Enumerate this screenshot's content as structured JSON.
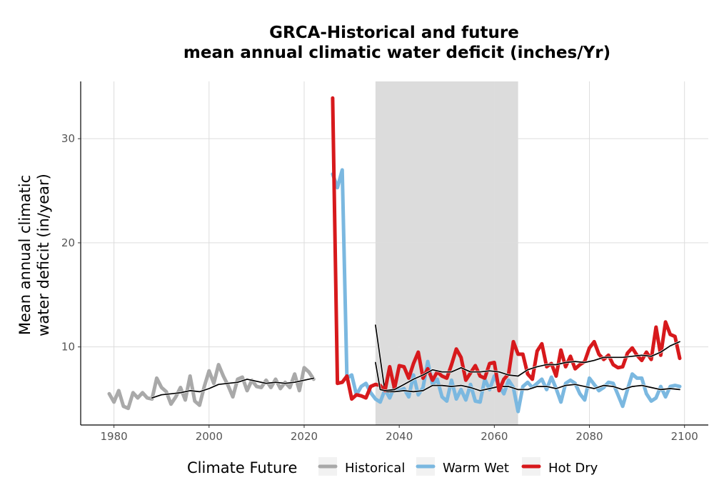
{
  "chart_data": {
    "type": "line",
    "title": [
      "GRCA-Historical and future",
      "mean annual climatic water deficit (inches/Yr)"
    ],
    "xlabel": "",
    "ylabel": [
      "Mean annual climatic",
      "water deficit (in/year)"
    ],
    "xlim": [
      1973,
      2105
    ],
    "ylim": [
      2.5,
      35.5
    ],
    "x_ticks": [
      1980,
      2000,
      2020,
      2040,
      2060,
      2080,
      2100
    ],
    "y_ticks": [
      10,
      20,
      30
    ],
    "grid": true,
    "shaded_period": [
      2035,
      2065
    ],
    "shaded_color": "#dcdcdc",
    "legend": {
      "title": "Climate Future",
      "position": "bottom",
      "entries": [
        {
          "label": "Historical",
          "color": "#a9a9a9"
        },
        {
          "label": "Warm Wet",
          "color": "#7bb8e0"
        },
        {
          "label": "Hot Dry",
          "color": "#d7191c"
        }
      ]
    },
    "series": [
      {
        "name": "Historical",
        "color": "#a9a9a9",
        "x": [
          1979,
          1980,
          1981,
          1982,
          1983,
          1984,
          1985,
          1986,
          1987,
          1988,
          1989,
          1990,
          1991,
          1992,
          1993,
          1994,
          1995,
          1996,
          1997,
          1998,
          1999,
          2000,
          2001,
          2002,
          2003,
          2004,
          2005,
          2006,
          2007,
          2008,
          2009,
          2010,
          2011,
          2012,
          2013,
          2014,
          2015,
          2016,
          2017,
          2018,
          2019,
          2020,
          2021,
          2022
        ],
        "y": [
          5.5,
          4.7,
          5.8,
          4.3,
          4.1,
          5.6,
          5.1,
          5.6,
          5.1,
          5.0,
          7.0,
          6.1,
          5.7,
          4.5,
          5.2,
          6.1,
          4.9,
          7.2,
          4.8,
          4.4,
          6.2,
          7.7,
          6.5,
          8.3,
          7.2,
          6.3,
          5.2,
          6.9,
          7.1,
          5.8,
          6.8,
          6.2,
          6.1,
          6.8,
          6.1,
          6.9,
          6.0,
          6.6,
          6.1,
          7.4,
          5.8,
          8.0,
          7.6,
          6.9
        ]
      },
      {
        "name": "Historical rolling mean",
        "color": "#000000",
        "x": [
          1988,
          1990,
          1992,
          1994,
          1996,
          1998,
          2000,
          2002,
          2004,
          2006,
          2008,
          2010,
          2012,
          2014,
          2016,
          2018,
          2020,
          2022
        ],
        "y": [
          5.1,
          5.4,
          5.5,
          5.6,
          5.8,
          5.7,
          6.0,
          6.4,
          6.5,
          6.6,
          6.9,
          6.7,
          6.5,
          6.6,
          6.5,
          6.6,
          6.8,
          7.0
        ]
      },
      {
        "name": "Warm Wet",
        "color": "#7bb8e0",
        "x": [
          2026,
          2027,
          2028,
          2029,
          2030,
          2031,
          2032,
          2033,
          2034,
          2035,
          2036,
          2037,
          2038,
          2039,
          2040,
          2041,
          2042,
          2043,
          2044,
          2045,
          2046,
          2047,
          2048,
          2049,
          2050,
          2051,
          2052,
          2053,
          2054,
          2055,
          2056,
          2057,
          2058,
          2059,
          2060,
          2061,
          2062,
          2063,
          2064,
          2065,
          2066,
          2067,
          2068,
          2069,
          2070,
          2071,
          2072,
          2073,
          2074,
          2075,
          2076,
          2077,
          2078,
          2079,
          2080,
          2081,
          2082,
          2083,
          2084,
          2085,
          2086,
          2087,
          2088,
          2089,
          2090,
          2091,
          2092,
          2093,
          2094,
          2095,
          2096,
          2097,
          2098,
          2099
        ],
        "y": [
          26.6,
          25.3,
          27.0,
          7.0,
          7.3,
          5.4,
          6.2,
          6.5,
          5.6,
          5.0,
          4.7,
          5.9,
          5.1,
          6.2,
          5.8,
          6.0,
          5.2,
          7.3,
          5.4,
          6.1,
          8.6,
          6.4,
          6.9,
          5.2,
          4.8,
          6.8,
          5.0,
          5.9,
          4.9,
          6.4,
          4.8,
          4.7,
          6.9,
          5.9,
          7.2,
          6.3,
          5.5,
          6.8,
          6.1,
          3.8,
          6.2,
          6.6,
          6.1,
          6.5,
          6.9,
          5.9,
          7.1,
          6.0,
          4.7,
          6.5,
          6.8,
          6.5,
          5.5,
          4.9,
          7.0,
          6.4,
          5.8,
          6.1,
          6.6,
          6.5,
          5.4,
          4.3,
          5.9,
          7.4,
          7.0,
          7.0,
          5.5,
          4.8,
          5.1,
          6.2,
          5.2,
          6.2,
          6.3,
          6.2
        ]
      },
      {
        "name": "Warm Wet rolling mean",
        "color": "#000000",
        "x": [
          2035,
          2037,
          2039,
          2041,
          2043,
          2045,
          2047,
          2049,
          2051,
          2053,
          2055,
          2057,
          2059,
          2061,
          2063,
          2065,
          2067,
          2069,
          2071,
          2073,
          2075,
          2077,
          2079,
          2081,
          2083,
          2085,
          2087,
          2089,
          2091,
          2093,
          2095,
          2097,
          2099
        ],
        "y": [
          12.1,
          5.7,
          5.7,
          5.8,
          5.7,
          5.8,
          6.3,
          6.3,
          6.2,
          6.3,
          6.1,
          5.8,
          6.0,
          6.2,
          6.2,
          5.9,
          5.9,
          6.2,
          6.2,
          6.0,
          6.3,
          6.4,
          6.2,
          6.0,
          6.3,
          6.2,
          5.9,
          6.2,
          6.3,
          6.1,
          5.9,
          6.0,
          5.9
        ]
      },
      {
        "name": "Hot Dry",
        "color": "#d7191c",
        "x": [
          2026,
          2027,
          2028,
          2029,
          2030,
          2031,
          2032,
          2033,
          2034,
          2035,
          2036,
          2037,
          2038,
          2039,
          2040,
          2041,
          2042,
          2043,
          2044,
          2045,
          2046,
          2047,
          2048,
          2049,
          2050,
          2051,
          2052,
          2053,
          2054,
          2055,
          2056,
          2057,
          2058,
          2059,
          2060,
          2061,
          2062,
          2063,
          2064,
          2065,
          2066,
          2067,
          2068,
          2069,
          2070,
          2071,
          2072,
          2073,
          2074,
          2075,
          2076,
          2077,
          2078,
          2079,
          2080,
          2081,
          2082,
          2083,
          2084,
          2085,
          2086,
          2087,
          2088,
          2089,
          2090,
          2091,
          2092,
          2093,
          2094,
          2095,
          2096,
          2097,
          2098,
          2099
        ],
        "y": [
          33.9,
          6.5,
          6.6,
          7.2,
          5.0,
          5.4,
          5.3,
          5.1,
          6.2,
          6.4,
          6.3,
          5.8,
          8.1,
          6.0,
          8.2,
          8.1,
          7.0,
          8.4,
          9.5,
          7.0,
          7.9,
          6.8,
          7.6,
          7.2,
          7.0,
          8.3,
          9.8,
          9.0,
          6.8,
          7.5,
          8.2,
          7.2,
          7.0,
          8.4,
          8.5,
          5.8,
          6.9,
          7.4,
          10.5,
          9.3,
          9.3,
          7.4,
          6.9,
          9.6,
          10.3,
          8.1,
          8.4,
          7.2,
          9.7,
          8.1,
          9.1,
          7.9,
          8.3,
          8.6,
          9.9,
          10.5,
          9.3,
          8.8,
          9.2,
          8.3,
          8.0,
          8.1,
          9.4,
          9.9,
          9.2,
          8.7,
          9.5,
          8.8,
          11.9,
          9.2,
          12.4,
          11.2,
          11.0,
          8.9
        ]
      },
      {
        "name": "Hot Dry rolling mean",
        "color": "#000000",
        "x": [
          2035,
          2036,
          2037,
          2039,
          2041,
          2043,
          2045,
          2047,
          2049,
          2051,
          2053,
          2055,
          2057,
          2059,
          2061,
          2063,
          2065,
          2067,
          2069,
          2071,
          2073,
          2075,
          2077,
          2079,
          2081,
          2083,
          2085,
          2087,
          2089,
          2091,
          2093,
          2095,
          2097,
          2099
        ],
        "y": [
          8.5,
          5.9,
          5.8,
          5.9,
          6.4,
          6.9,
          7.3,
          7.8,
          7.6,
          7.6,
          8.0,
          7.6,
          7.6,
          7.7,
          7.6,
          7.3,
          7.2,
          7.8,
          8.1,
          8.3,
          8.3,
          8.5,
          8.6,
          8.5,
          8.7,
          9.0,
          9.0,
          9.0,
          9.1,
          9.2,
          9.1,
          9.5,
          10.1,
          10.5
        ]
      }
    ]
  }
}
